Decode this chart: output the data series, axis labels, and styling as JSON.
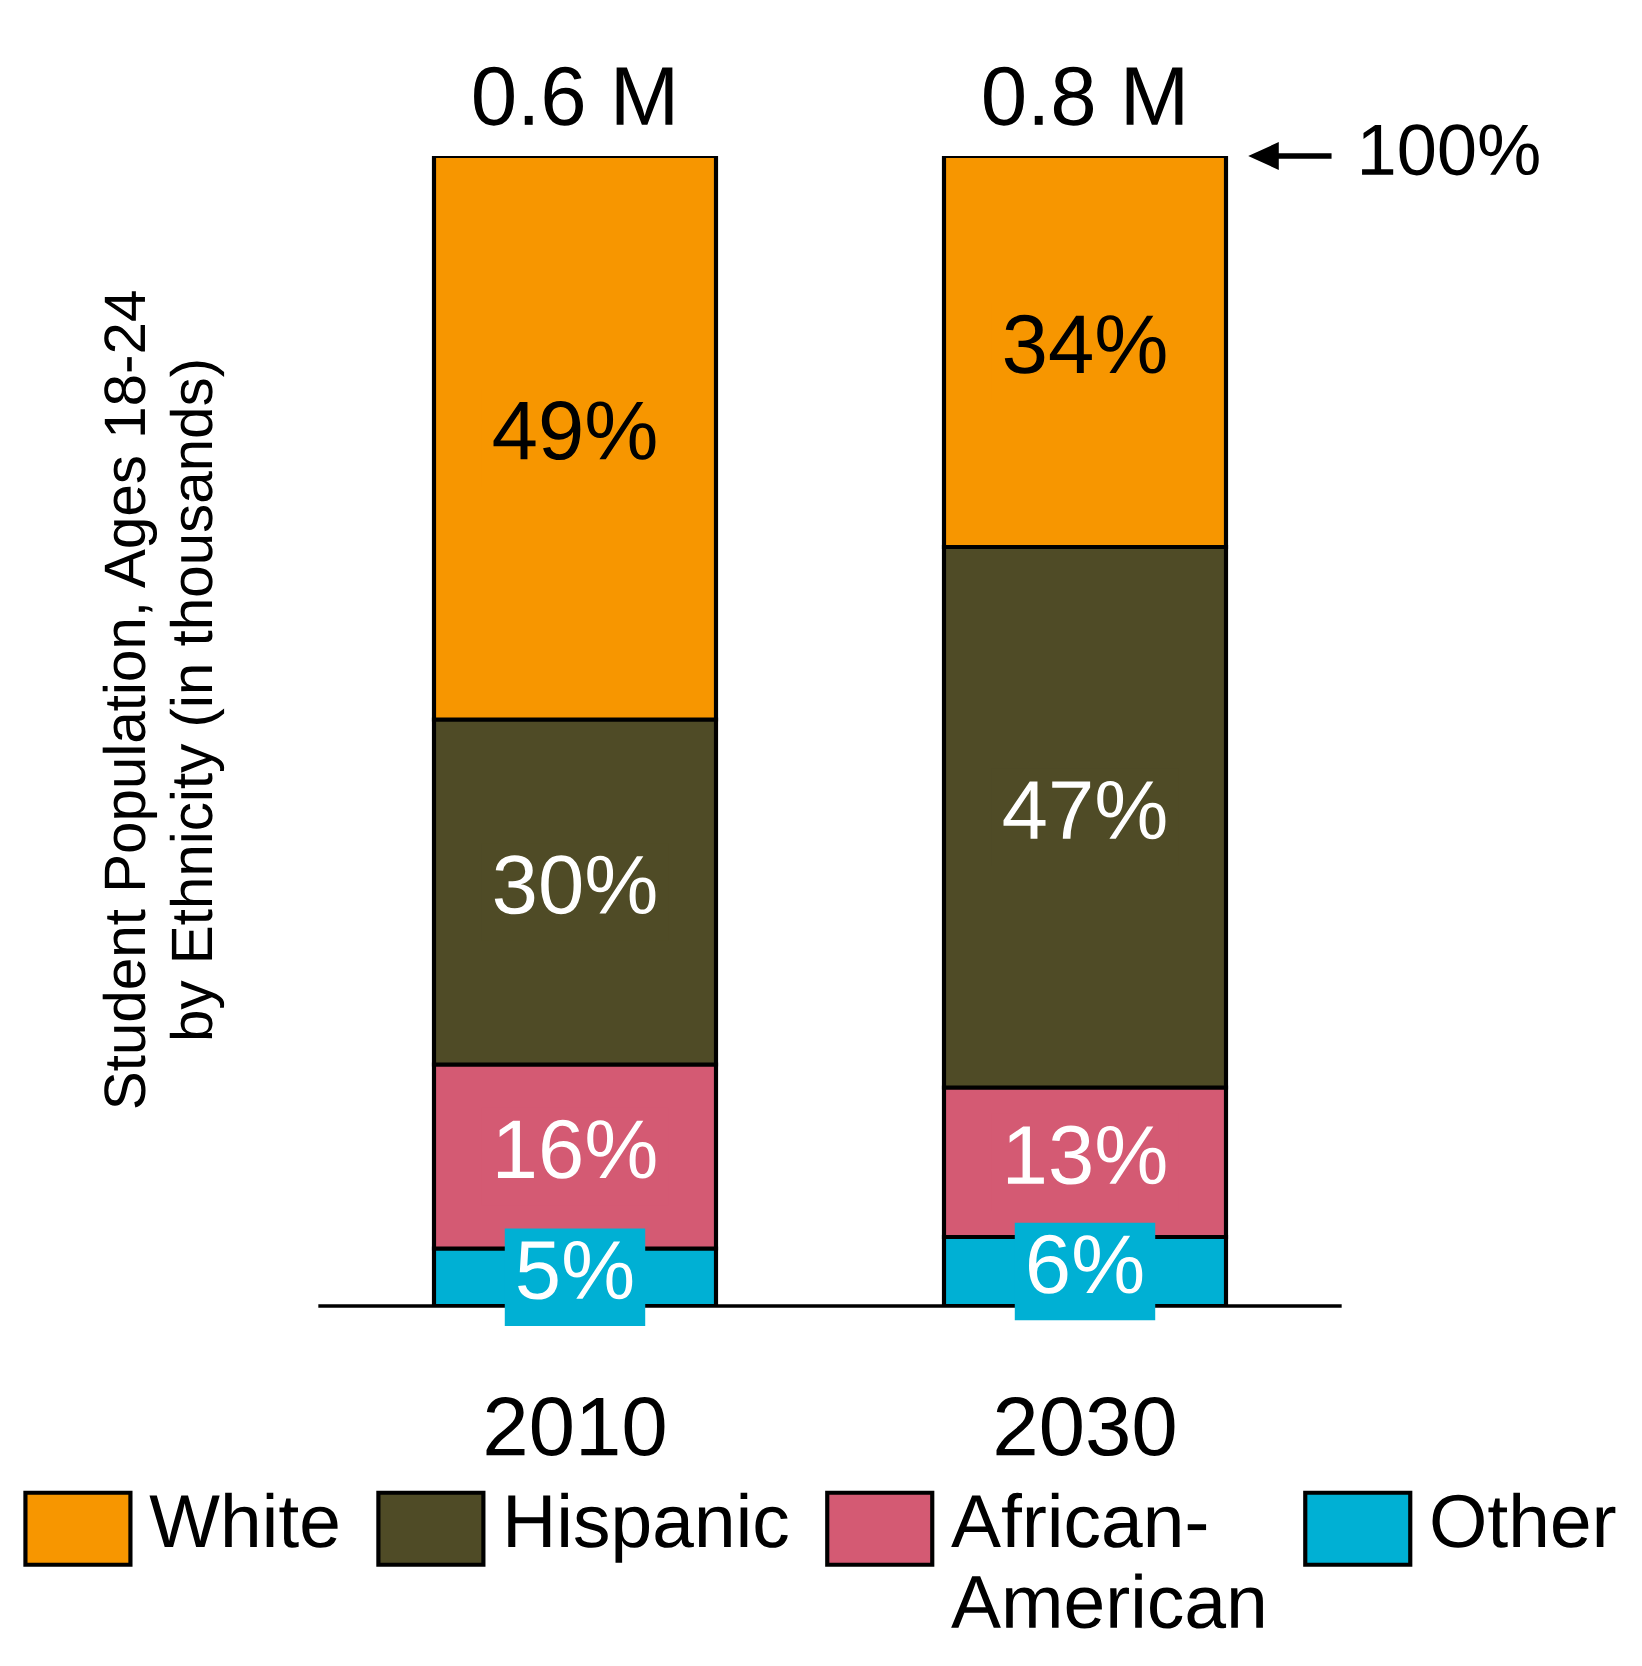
{
  "chart_data": {
    "type": "bar",
    "stacked": true,
    "ylabel": "Student Population, Ages 18-24\nby Ethnicity (in thousands)",
    "categories": [
      "2010",
      "2030"
    ],
    "series": [
      {
        "name": "Other",
        "color": "#00b0d4",
        "values": [
          5,
          6
        ],
        "value_labels": [
          "5%",
          "6%"
        ]
      },
      {
        "name": "African-\nAmerican",
        "color": "#d45a73",
        "values": [
          16,
          13
        ],
        "value_labels": [
          "16%",
          "13%"
        ]
      },
      {
        "name": "Hispanic",
        "color": "#4f4b26",
        "values": [
          30,
          47
        ],
        "value_labels": [
          "30%",
          "47%"
        ]
      },
      {
        "name": "White",
        "color": "#f79600",
        "values": [
          49,
          34
        ],
        "value_labels": [
          "49%",
          "34%"
        ]
      }
    ],
    "annotations": [
      {
        "text": "0.6 M",
        "x": "2010",
        "y": 100
      },
      {
        "text": "0.8 M",
        "x": "2030",
        "y": 100
      },
      "100%"
    ],
    "legend": "bottom"
  }
}
